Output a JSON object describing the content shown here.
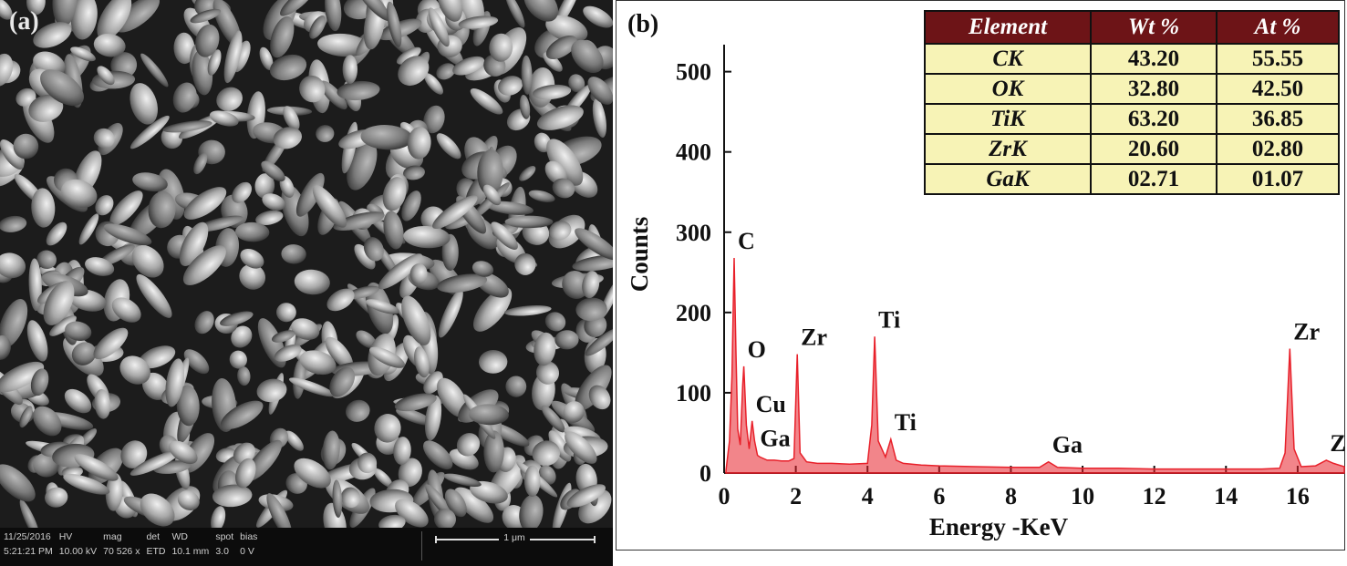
{
  "panel_a": {
    "label": "(a)",
    "info_bar": {
      "headers": [
        "11/25/2016",
        "HV",
        "mag",
        "det",
        "WD",
        "spot",
        "bias"
      ],
      "values": [
        "5:21:21 PM",
        "10.00 kV",
        "70 526 x",
        "ETD",
        "10.1 mm",
        "3.0",
        "0 V"
      ],
      "scale_label": "1 μm"
    }
  },
  "panel_b": {
    "label": "(b)",
    "table": {
      "headers": [
        "Element",
        "Wt %",
        "At %"
      ],
      "rows": [
        [
          "CK",
          "43.20",
          "55.55"
        ],
        [
          "OK",
          "32.80",
          "42.50"
        ],
        [
          "TiK",
          "63.20",
          "36.85"
        ],
        [
          "ZrK",
          "20.60",
          "02.80"
        ],
        [
          "GaK",
          "02.71",
          "01.07"
        ]
      ],
      "colors": {
        "header_bg": "#6d1417",
        "cell_bg": "#f7f3b6"
      }
    }
  },
  "chart_data": {
    "type": "line",
    "title": "",
    "xlabel": "Energy -KeV",
    "ylabel": "Counts",
    "xlim": [
      0,
      17.3
    ],
    "ylim": [
      0,
      520
    ],
    "x_ticks": [
      0,
      2,
      4,
      6,
      8,
      10,
      12,
      14,
      16
    ],
    "y_ticks": [
      0,
      100,
      200,
      300,
      400,
      500
    ],
    "grid": false,
    "line_color": "#e8202a",
    "series": [
      {
        "x": [
          0.05,
          0.15,
          0.22,
          0.28,
          0.33,
          0.38,
          0.45,
          0.52,
          0.55,
          0.62,
          0.7,
          0.78,
          0.85,
          0.93,
          1.0,
          1.2,
          1.4,
          1.6,
          1.8,
          1.95,
          2.04,
          2.12,
          2.3,
          2.6,
          3.0,
          3.5,
          4.0,
          4.12,
          4.2,
          4.3,
          4.5,
          4.65,
          4.8,
          5.0,
          5.5,
          6.0,
          7.0,
          8.0,
          8.8,
          9.05,
          9.3,
          10.0,
          11.0,
          12.0,
          13.0,
          14.0,
          15.0,
          15.5,
          15.65,
          15.78,
          15.9,
          16.1,
          16.5,
          16.8,
          17.0,
          17.3
        ],
        "y": [
          3,
          40,
          120,
          268,
          150,
          55,
          35,
          110,
          133,
          60,
          30,
          65,
          40,
          22,
          20,
          16,
          16,
          15,
          15,
          18,
          148,
          25,
          14,
          12,
          12,
          11,
          12,
          60,
          170,
          40,
          20,
          42,
          16,
          12,
          10,
          9,
          8,
          7,
          7,
          14,
          7,
          6,
          6,
          5,
          5,
          5,
          5,
          6,
          25,
          155,
          30,
          8,
          9,
          16,
          12,
          8
        ]
      }
    ],
    "peak_labels": [
      {
        "text": "C",
        "x": 0.28,
        "y": 268
      },
      {
        "text": "O",
        "x": 0.55,
        "y": 133
      },
      {
        "text": "Cu",
        "x": 0.78,
        "y": 65
      },
      {
        "text": "Ga",
        "x": 0.9,
        "y": 22
      },
      {
        "text": "Zr",
        "x": 2.04,
        "y": 148
      },
      {
        "text": "Ti",
        "x": 4.2,
        "y": 170
      },
      {
        "text": "Ti",
        "x": 4.65,
        "y": 42
      },
      {
        "text": "Ga",
        "x": 9.05,
        "y": 14
      },
      {
        "text": "Zr",
        "x": 15.78,
        "y": 155
      },
      {
        "text": "Zr",
        "x": 16.8,
        "y": 16
      }
    ]
  }
}
